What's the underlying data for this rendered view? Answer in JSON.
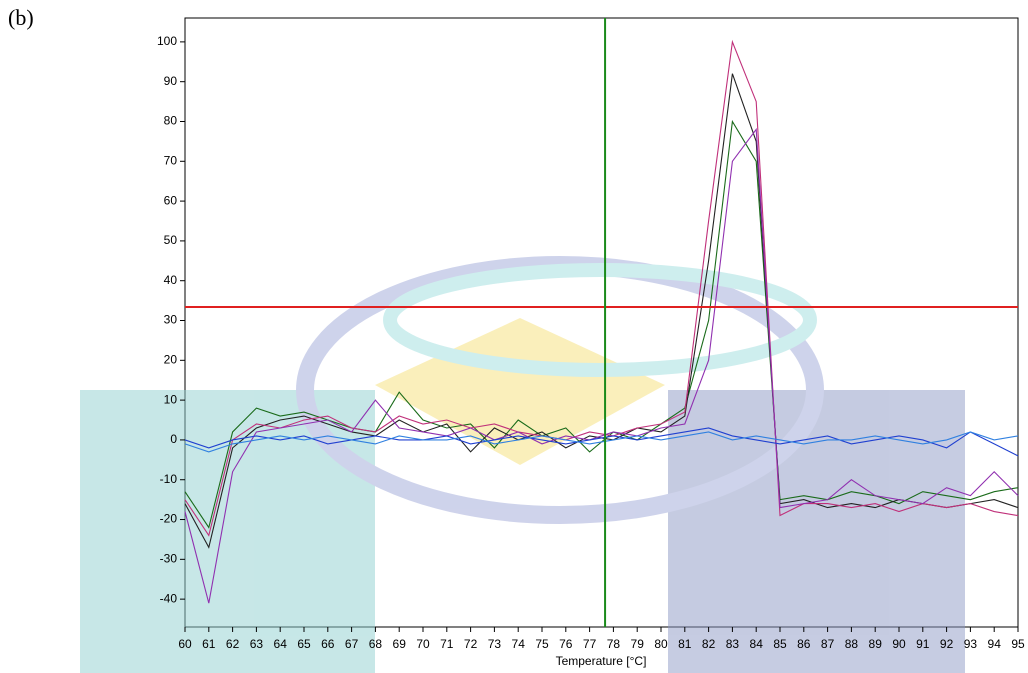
{
  "label": "(b)",
  "chart_data": {
    "type": "line",
    "x_label": "Temperature [°C]",
    "x": [
      60,
      61,
      62,
      63,
      64,
      65,
      66,
      67,
      68,
      69,
      70,
      71,
      72,
      73,
      74,
      75,
      76,
      77,
      78,
      79,
      80,
      81,
      82,
      83,
      84,
      85,
      86,
      87,
      88,
      89,
      90,
      91,
      92,
      93,
      94,
      95
    ],
    "series": [
      {
        "color": "#1a6b1a",
        "values": [
          -13,
          -22,
          2,
          8,
          6,
          7,
          5,
          3,
          2,
          12,
          5,
          3,
          4,
          -2,
          5,
          1,
          3,
          -3,
          2,
          0,
          4,
          8,
          30,
          80,
          70,
          -15,
          -14,
          -15,
          -13,
          -14,
          -16,
          -13,
          -14,
          -15,
          -13,
          -12
        ]
      },
      {
        "color": "#222222",
        "values": [
          -16,
          -27,
          -2,
          3,
          5,
          6,
          4,
          2,
          1,
          5,
          2,
          4,
          -3,
          3,
          0,
          2,
          -2,
          1,
          0,
          3,
          2,
          6,
          45,
          92,
          75,
          -16,
          -15,
          -17,
          -16,
          -17,
          -15,
          -16,
          -17,
          -16,
          -15,
          -17
        ]
      },
      {
        "color": "#c0307a",
        "values": [
          -15,
          -24,
          0,
          4,
          3,
          5,
          6,
          3,
          2,
          6,
          4,
          5,
          3,
          4,
          2,
          1,
          0,
          2,
          1,
          3,
          4,
          7,
          55,
          100,
          85,
          -19,
          -16,
          -16,
          -17,
          -16,
          -18,
          -16,
          -17,
          -16,
          -18,
          -19
        ]
      },
      {
        "color": "#9030b0",
        "values": [
          -18,
          -41,
          -8,
          2,
          3,
          4,
          5,
          2,
          10,
          3,
          2,
          1,
          3,
          0,
          2,
          -1,
          1,
          0,
          2,
          1,
          3,
          4,
          20,
          70,
          78,
          -17,
          -16,
          -15,
          -10,
          -14,
          -15,
          -16,
          -12,
          -14,
          -8,
          -14
        ]
      },
      {
        "color": "#2040d0",
        "values": [
          0,
          -2,
          0,
          1,
          0,
          1,
          -1,
          0,
          1,
          0,
          0,
          1,
          -1,
          0,
          1,
          0,
          -1,
          0,
          1,
          0,
          1,
          2,
          3,
          1,
          0,
          -1,
          0,
          1,
          -1,
          0,
          1,
          0,
          -2,
          2,
          -1,
          -4
        ]
      },
      {
        "color": "#3080e0",
        "values": [
          -1,
          -3,
          -1,
          0,
          1,
          0,
          1,
          0,
          -1,
          1,
          0,
          0,
          1,
          -1,
          0,
          1,
          0,
          -1,
          0,
          1,
          0,
          1,
          2,
          0,
          1,
          0,
          -1,
          0,
          0,
          1,
          0,
          -1,
          0,
          2,
          0,
          1
        ]
      }
    ],
    "xlim": [
      60,
      95
    ],
    "xticks": [
      60,
      61,
      62,
      63,
      64,
      65,
      66,
      67,
      68,
      69,
      70,
      71,
      72,
      73,
      74,
      75,
      76,
      77,
      78,
      79,
      80,
      81,
      82,
      83,
      84,
      85,
      86,
      87,
      88,
      89,
      90,
      91,
      92,
      93,
      94,
      95
    ],
    "ylim": [
      -47,
      106
    ],
    "yticks": [
      -40,
      -30,
      -20,
      -10,
      0,
      10,
      20,
      30,
      40,
      50,
      60,
      70,
      80,
      90,
      100
    ],
    "threshold_y": {
      "value": 33.4,
      "color": "#e02020"
    },
    "marker_x": {
      "value": 77.65,
      "color": "#1a8a1a"
    }
  }
}
